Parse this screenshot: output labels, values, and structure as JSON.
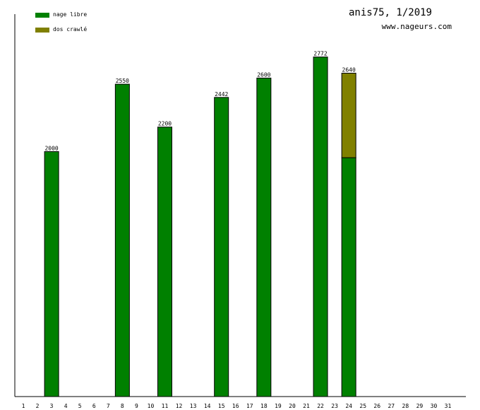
{
  "header": {
    "title": "anis75, 1/2019",
    "site": "www.nageurs.com"
  },
  "legend": [
    {
      "label": "nage libre",
      "color": "#008000"
    },
    {
      "label": "dos crawlé",
      "color": "#808000"
    }
  ],
  "chart_data": {
    "type": "bar",
    "stacked": true,
    "categories": [
      "1",
      "2",
      "3",
      "4",
      "5",
      "6",
      "7",
      "8",
      "9",
      "10",
      "11",
      "12",
      "13",
      "14",
      "15",
      "16",
      "17",
      "18",
      "19",
      "20",
      "21",
      "22",
      "23",
      "24",
      "25",
      "26",
      "27",
      "28",
      "29",
      "30",
      "31"
    ],
    "series": [
      {
        "name": "nage libre",
        "color": "#008000",
        "values": [
          0,
          0,
          2000,
          0,
          0,
          0,
          0,
          2550,
          0,
          0,
          2200,
          0,
          0,
          0,
          2442,
          0,
          0,
          2600,
          0,
          0,
          0,
          2772,
          0,
          1950,
          0,
          0,
          0,
          0,
          0,
          0,
          0
        ]
      },
      {
        "name": "dos crawlé",
        "color": "#808000",
        "values": [
          0,
          0,
          0,
          0,
          0,
          0,
          0,
          0,
          0,
          0,
          0,
          0,
          0,
          0,
          0,
          0,
          0,
          0,
          0,
          0,
          0,
          0,
          0,
          690,
          0,
          0,
          0,
          0,
          0,
          0,
          0
        ]
      }
    ],
    "totals": [
      0,
      0,
      2000,
      0,
      0,
      0,
      0,
      2550,
      0,
      0,
      2200,
      0,
      0,
      0,
      2442,
      0,
      0,
      2600,
      0,
      0,
      0,
      2772,
      0,
      2640,
      0,
      0,
      0,
      0,
      0,
      0,
      0
    ],
    "ylim": [
      0,
      3000
    ],
    "grid": false,
    "legend_position": "top-left"
  }
}
